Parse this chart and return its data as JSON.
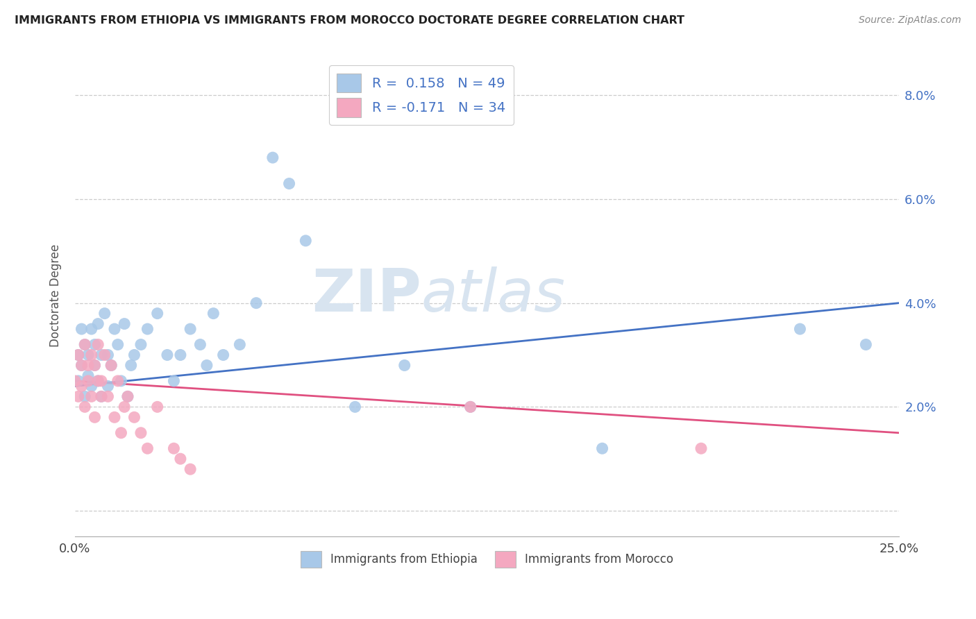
{
  "title": "IMMIGRANTS FROM ETHIOPIA VS IMMIGRANTS FROM MOROCCO DOCTORATE DEGREE CORRELATION CHART",
  "source": "Source: ZipAtlas.com",
  "ylabel": "Doctorate Degree",
  "xlim": [
    0.0,
    0.25
  ],
  "ylim": [
    -0.005,
    0.088
  ],
  "yticks": [
    0.0,
    0.02,
    0.04,
    0.06,
    0.08
  ],
  "ytick_labels": [
    "",
    "2.0%",
    "4.0%",
    "6.0%",
    "8.0%"
  ],
  "xticks": [
    0.0,
    0.05,
    0.1,
    0.15,
    0.2,
    0.25
  ],
  "xtick_labels": [
    "0.0%",
    "",
    "",
    "",
    "",
    "25.0%"
  ],
  "legend_r1": "R =  0.158   N = 49",
  "legend_r2": "R = -0.171   N = 34",
  "color_ethiopia": "#a8c8e8",
  "color_morocco": "#f4a8c0",
  "line_color_ethiopia": "#4472c4",
  "line_color_morocco": "#e05080",
  "watermark_zip": "ZIP",
  "watermark_atlas": "atlas",
  "eth_line_x": [
    0.0,
    0.25
  ],
  "eth_line_y": [
    0.024,
    0.04
  ],
  "mor_line_x": [
    0.0,
    0.25
  ],
  "mor_line_y": [
    0.025,
    0.015
  ],
  "ethiopia_scatter_x": [
    0.001,
    0.001,
    0.002,
    0.002,
    0.003,
    0.003,
    0.004,
    0.004,
    0.005,
    0.005,
    0.006,
    0.006,
    0.007,
    0.007,
    0.008,
    0.008,
    0.009,
    0.01,
    0.01,
    0.011,
    0.012,
    0.013,
    0.014,
    0.015,
    0.016,
    0.017,
    0.018,
    0.02,
    0.022,
    0.025,
    0.028,
    0.03,
    0.032,
    0.035,
    0.038,
    0.04,
    0.042,
    0.045,
    0.05,
    0.055,
    0.06,
    0.065,
    0.07,
    0.085,
    0.1,
    0.12,
    0.16,
    0.22,
    0.24
  ],
  "ethiopia_scatter_y": [
    0.03,
    0.025,
    0.035,
    0.028,
    0.032,
    0.022,
    0.03,
    0.026,
    0.035,
    0.024,
    0.028,
    0.032,
    0.036,
    0.025,
    0.022,
    0.03,
    0.038,
    0.024,
    0.03,
    0.028,
    0.035,
    0.032,
    0.025,
    0.036,
    0.022,
    0.028,
    0.03,
    0.032,
    0.035,
    0.038,
    0.03,
    0.025,
    0.03,
    0.035,
    0.032,
    0.028,
    0.038,
    0.03,
    0.032,
    0.04,
    0.068,
    0.063,
    0.052,
    0.02,
    0.028,
    0.02,
    0.012,
    0.035,
    0.032
  ],
  "morocco_scatter_x": [
    0.0,
    0.001,
    0.001,
    0.002,
    0.002,
    0.003,
    0.003,
    0.004,
    0.004,
    0.005,
    0.005,
    0.006,
    0.006,
    0.007,
    0.007,
    0.008,
    0.008,
    0.009,
    0.01,
    0.011,
    0.012,
    0.013,
    0.014,
    0.015,
    0.016,
    0.018,
    0.02,
    0.022,
    0.025,
    0.03,
    0.032,
    0.035,
    0.12,
    0.19
  ],
  "morocco_scatter_y": [
    0.025,
    0.03,
    0.022,
    0.028,
    0.024,
    0.032,
    0.02,
    0.028,
    0.025,
    0.03,
    0.022,
    0.018,
    0.028,
    0.025,
    0.032,
    0.022,
    0.025,
    0.03,
    0.022,
    0.028,
    0.018,
    0.025,
    0.015,
    0.02,
    0.022,
    0.018,
    0.015,
    0.012,
    0.02,
    0.012,
    0.01,
    0.008,
    0.02,
    0.012
  ]
}
